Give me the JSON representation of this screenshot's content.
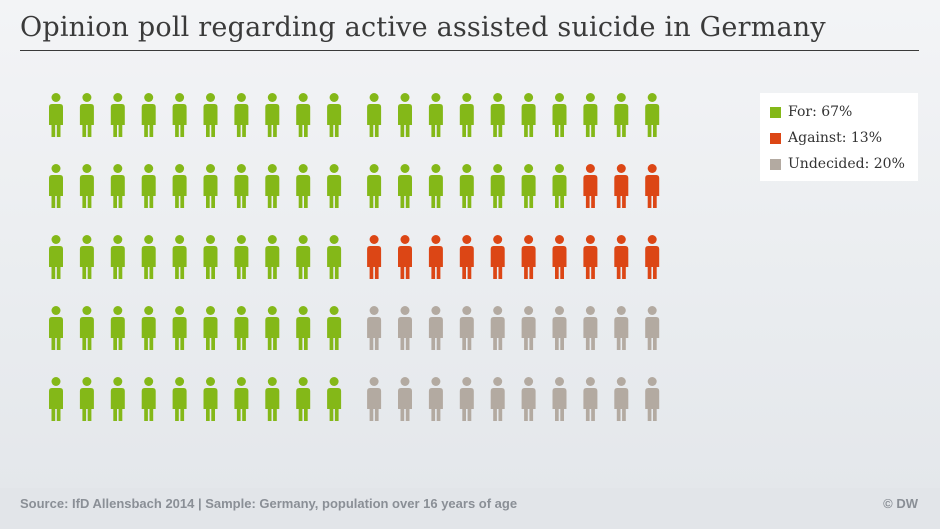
{
  "title": "Opinion poll regarding active assisted suicide in Germany",
  "source": "Source: IfD Allensbach 2014 | Sample: Germany, population over 16 years of age",
  "credit": "© DW",
  "colors": {
    "for": "#84b818",
    "against": "#dc4615",
    "undecided": "#b3aaa1"
  },
  "legend": [
    {
      "label": "For: 67%",
      "key": "for"
    },
    {
      "label": "Against: 13%",
      "key": "against"
    },
    {
      "label": "Undecided: 20%",
      "key": "undecided"
    }
  ],
  "chart_data": {
    "type": "pictogram",
    "title": "Opinion poll regarding active assisted suicide in Germany",
    "total_icons": 100,
    "grid": {
      "rows": 5,
      "columns": 20
    },
    "categories": [
      "For",
      "Against",
      "Undecided"
    ],
    "values": [
      67,
      13,
      20
    ],
    "unit": "%",
    "grid_lines": false,
    "legend_position": "top-right"
  }
}
